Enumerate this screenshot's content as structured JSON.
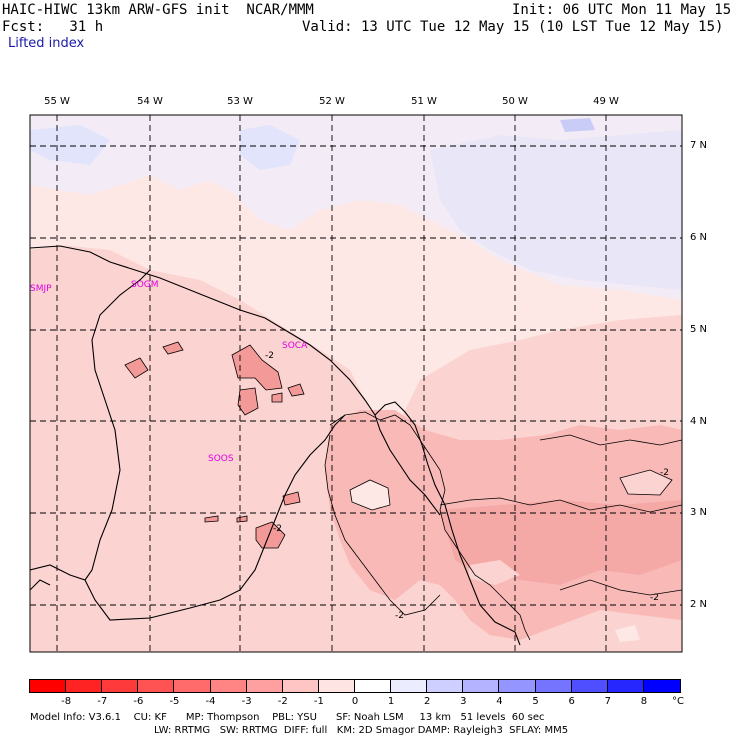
{
  "header": {
    "model": "HAIC-HIWC 13km ARW-GFS init  NCAR/MMM",
    "init": "Init: 06 UTC Mon 11 May 15",
    "fcst": "Fcst:   31 h",
    "valid": "Valid: 13 UTC Tue 12 May 15 (10 LST Tue 12 May 15)",
    "field": "Lifted index"
  },
  "axes": {
    "lon_labels": [
      "55 W",
      "54 W",
      "53 W",
      "52 W",
      "51 W",
      "50 W",
      "49 W"
    ],
    "lat_labels": [
      "7 N",
      "6 N",
      "5 N",
      "4 N",
      "3 N",
      "2 N"
    ]
  },
  "stations": [
    "SMJP",
    "SOGM",
    "SOCA",
    "SOOS"
  ],
  "contour_labels": [
    "-2",
    "-2",
    "-2",
    "-2",
    "-2"
  ],
  "colorbar": {
    "labels": [
      "-8",
      "-7",
      "-6",
      "-5",
      "-4",
      "-3",
      "-2",
      "-1",
      "0",
      "1",
      "2",
      "3",
      "4",
      "5",
      "6",
      "7",
      "8"
    ],
    "unit": "°C",
    "colors": [
      "#ff0000",
      "#ff2323",
      "#ff3a3a",
      "#ff5252",
      "#ff6a6a",
      "#ff8585",
      "#ffa0a0",
      "#ffc4c4",
      "#ffe4e4",
      "#ffffff",
      "#ececff",
      "#cfcfff",
      "#b3b3ff",
      "#9595ff",
      "#7474ff",
      "#4f4fff",
      "#2626ff",
      "#0000ff"
    ]
  },
  "footer": {
    "line1": "Model Info: V3.6.1    CU: KF      MP: Thompson    PBL: YSU      SF: Noah LSM     13 km   51 levels  60 sec",
    "line2": "LW: RRTMG   SW: RRTMG  DIFF: full   KM: 2D Smagor DAMP: Rayleigh3  SFLAY: MM5"
  },
  "legend_colors": {
    "very_light": "#fde8e6",
    "light": "#fbd3d1",
    "medium": "#f8b9b7",
    "darker": "#f39a99",
    "blue_light": "#e2e4fb",
    "blue_mid": "#c9ccf6"
  }
}
